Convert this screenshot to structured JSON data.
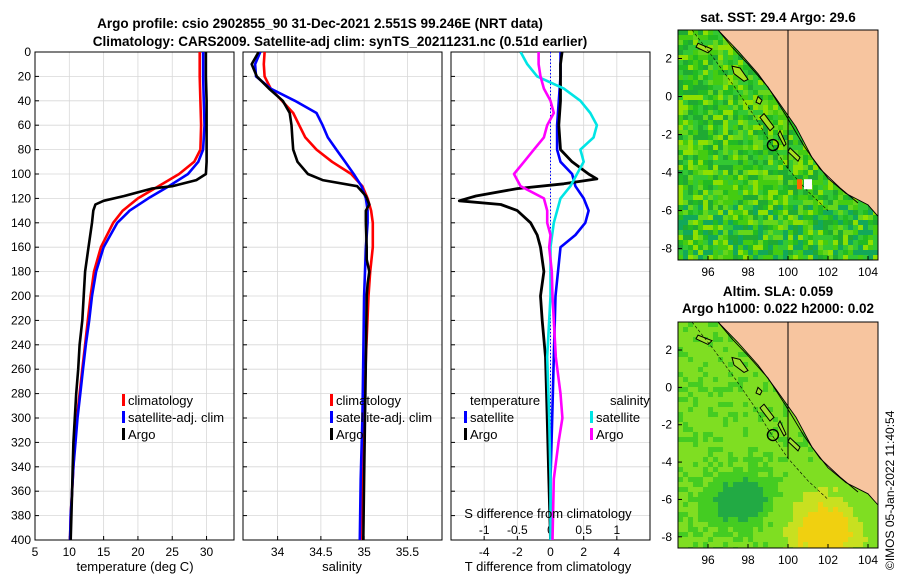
{
  "title": {
    "line1": "Argo profile: csio 2902855_90 31-Dec-2021 2.551S 99.246E (NRT data)",
    "line2": "Climatology: CARS2009. Satellite-adj clim: synTS_20211231.nc (0.51d earlier)"
  },
  "watermark": "©IMOS 05-Jan-2022 11:40:54",
  "colors": {
    "climatology": "#ff0000",
    "satellite": "#0000ff",
    "argo": "#000000",
    "sal_sat": "#00e5e5",
    "sal_argo": "#ff00ff",
    "land": "#f7c59f",
    "ring": "#000000"
  },
  "chart_data": [
    {
      "name": "temperature",
      "type": "line",
      "xlabel": "temperature (deg C)",
      "xlim": [
        5,
        34
      ],
      "xticks": [
        5,
        10,
        15,
        20,
        25,
        30
      ],
      "ylim": [
        0,
        400
      ],
      "yticks": [
        0,
        20,
        40,
        60,
        80,
        100,
        120,
        140,
        160,
        180,
        200,
        220,
        240,
        260,
        280,
        300,
        320,
        340,
        360,
        380,
        400
      ],
      "legend": [
        "climatology",
        "satellite-adj. clim",
        "Argo"
      ],
      "series": [
        {
          "name": "climatology",
          "color": "#ff0000",
          "y": [
            0,
            20,
            40,
            60,
            80,
            90,
            100,
            110,
            120,
            130,
            140,
            160,
            180,
            200,
            220,
            240,
            260,
            280,
            300,
            320,
            340,
            360,
            380,
            400
          ],
          "x": [
            29.0,
            29.0,
            29.1,
            29.2,
            29.1,
            28.2,
            26.0,
            23.0,
            20.0,
            17.8,
            16.4,
            14.6,
            13.6,
            13.1,
            12.7,
            12.3,
            11.9,
            11.5,
            11.1,
            10.8,
            10.6,
            10.4,
            10.2,
            10.1
          ]
        },
        {
          "name": "satellite-adj. clim",
          "color": "#0000ff",
          "y": [
            0,
            20,
            40,
            60,
            80,
            90,
            100,
            110,
            120,
            130,
            140,
            160,
            180,
            200,
            220,
            240,
            260,
            280,
            300,
            320,
            340,
            360,
            380,
            400
          ],
          "x": [
            29.5,
            29.5,
            29.6,
            29.7,
            29.5,
            28.8,
            27.3,
            24.5,
            21.5,
            18.8,
            17.0,
            15.0,
            13.9,
            13.3,
            12.9,
            12.4,
            12.0,
            11.6,
            11.2,
            10.9,
            10.6,
            10.4,
            10.2,
            10.1
          ]
        },
        {
          "name": "Argo",
          "color": "#000000",
          "y": [
            0,
            20,
            40,
            60,
            80,
            90,
            100,
            105,
            110,
            112,
            118,
            122,
            125,
            130,
            140,
            160,
            180,
            200,
            220,
            240,
            260,
            280,
            300,
            320,
            340,
            360,
            380,
            400
          ],
          "x": [
            29.9,
            29.9,
            30.0,
            30.0,
            30.0,
            30.0,
            29.9,
            28.5,
            25.0,
            22.0,
            18.0,
            15.0,
            13.8,
            13.5,
            13.3,
            12.8,
            12.3,
            12.1,
            11.9,
            11.5,
            11.3,
            11.0,
            10.8,
            10.6,
            10.5,
            10.4,
            10.3,
            10.2
          ]
        }
      ]
    },
    {
      "name": "salinity",
      "type": "line",
      "xlabel": "salinity",
      "xlim": [
        33.6,
        35.9
      ],
      "xticks": [
        34,
        34.5,
        35,
        35.5
      ],
      "ylim": [
        0,
        400
      ],
      "legend": [
        "climatology",
        "satellite-adj. clim",
        "Argo"
      ],
      "series": [
        {
          "name": "climatology",
          "color": "#ff0000",
          "y": [
            0,
            10,
            20,
            30,
            40,
            50,
            60,
            70,
            80,
            90,
            100,
            110,
            120,
            130,
            140,
            160,
            180,
            200,
            250,
            300,
            350,
            400
          ],
          "x": [
            33.85,
            33.84,
            33.85,
            33.92,
            34.05,
            34.18,
            34.25,
            34.32,
            34.45,
            34.63,
            34.85,
            34.98,
            35.04,
            35.08,
            35.1,
            35.1,
            35.07,
            35.05,
            35.02,
            35.0,
            34.98,
            34.96
          ]
        },
        {
          "name": "satellite-adj. clim",
          "color": "#0000ff",
          "y": [
            0,
            10,
            20,
            30,
            40,
            50,
            60,
            70,
            80,
            90,
            100,
            110,
            120,
            130,
            140,
            160,
            180,
            200,
            250,
            300,
            350,
            400
          ],
          "x": [
            33.8,
            33.74,
            33.75,
            33.92,
            34.2,
            34.45,
            34.52,
            34.58,
            34.68,
            34.78,
            34.88,
            34.97,
            35.02,
            35.04,
            35.04,
            35.02,
            35.01,
            35.0,
            34.99,
            34.98,
            34.96,
            34.95
          ]
        },
        {
          "name": "Argo",
          "color": "#000000",
          "y": [
            0,
            10,
            20,
            30,
            40,
            50,
            60,
            70,
            80,
            90,
            100,
            105,
            110,
            118,
            125,
            130,
            140,
            160,
            170,
            180,
            190,
            200,
            250,
            300,
            350,
            400
          ],
          "x": [
            33.78,
            33.7,
            33.76,
            33.9,
            34.06,
            34.14,
            34.16,
            34.17,
            34.18,
            34.23,
            34.35,
            34.52,
            34.92,
            35.02,
            35.06,
            35.02,
            35.02,
            35.03,
            35.03,
            35.06,
            35.04,
            35.03,
            35.02,
            35.01,
            35.0,
            34.99
          ]
        }
      ]
    },
    {
      "name": "differences",
      "type": "line",
      "xlabel": "T difference from climatology",
      "xlim": [
        -6,
        6
      ],
      "xticks": [
        -4,
        -2,
        0,
        2,
        4
      ],
      "top_axis_label": "S difference from climatology",
      "top_ticks": [
        -1,
        -0.5,
        0,
        0.5,
        1
      ],
      "ylim": [
        0,
        400
      ],
      "legend_temperature_title": "temperature",
      "legend_salinity_title": "salinity",
      "legend_entries": [
        "satellite",
        "Argo"
      ],
      "series": [
        {
          "name": "T satellite",
          "color": "#0000ff",
          "y": [
            0,
            20,
            40,
            60,
            80,
            90,
            100,
            110,
            120,
            130,
            140,
            150,
            160,
            200,
            250,
            300,
            350,
            400
          ],
          "x": [
            0.6,
            0.6,
            0.5,
            0.4,
            0.4,
            0.6,
            1.3,
            1.5,
            2.0,
            2.3,
            2.1,
            1.5,
            0.6,
            0.3,
            0.2,
            0.1,
            0.0,
            0.0
          ]
        },
        {
          "name": "T Argo",
          "color": "#000000",
          "y": [
            0,
            10,
            20,
            40,
            60,
            80,
            90,
            100,
            104,
            108,
            112,
            118,
            122,
            125,
            130,
            140,
            150,
            160,
            170,
            180,
            200,
            220,
            250,
            300,
            350,
            400
          ],
          "x": [
            0.7,
            0.6,
            0.6,
            0.6,
            0.5,
            0.6,
            1.3,
            2.3,
            2.8,
            0.8,
            -2.0,
            -4.5,
            -5.5,
            -3.0,
            -2.0,
            -1.2,
            -0.8,
            -0.6,
            -0.5,
            -0.4,
            -0.6,
            -0.5,
            -0.3,
            -0.2,
            -0.1,
            0.0
          ]
        },
        {
          "name": "S satellite",
          "color": "#00e5e5",
          "y": [
            0,
            10,
            20,
            30,
            40,
            50,
            60,
            70,
            80,
            90,
            100,
            110,
            120,
            140,
            160,
            200,
            250,
            300,
            350,
            400
          ],
          "x": [
            -0.45,
            -0.35,
            -0.2,
            0.2,
            0.45,
            0.6,
            0.7,
            0.65,
            0.45,
            0.5,
            0.4,
            0.3,
            0.15,
            0.05,
            0.0,
            0.0,
            -0.05,
            -0.02,
            0.0,
            0.0
          ]
        },
        {
          "name": "S Argo",
          "color": "#ff00ff",
          "y": [
            0,
            10,
            20,
            30,
            40,
            50,
            60,
            70,
            80,
            90,
            100,
            110,
            120,
            130,
            140,
            150,
            160,
            180,
            200,
            220,
            250,
            280,
            300,
            320,
            350,
            400
          ],
          "x": [
            -0.18,
            -0.18,
            -0.15,
            -0.1,
            0.0,
            0.05,
            -0.05,
            -0.1,
            -0.25,
            -0.4,
            -0.55,
            -0.45,
            -0.1,
            -0.05,
            -0.05,
            0.0,
            -0.02,
            0.02,
            0.03,
            0.05,
            0.08,
            0.15,
            0.18,
            0.12,
            0.05,
            0.03
          ]
        }
      ]
    },
    {
      "name": "sst_map",
      "type": "heatmap",
      "title": "sat. SST: 29.4 Argo: 29.6",
      "xticks": [
        96,
        98,
        100,
        102,
        104
      ],
      "yticks": [
        2,
        0,
        -2,
        -4,
        -6,
        -8
      ],
      "xlim": [
        94.5,
        104.5
      ],
      "ylim": [
        -8.6,
        3.5
      ],
      "argo_position": {
        "lon": 99.246,
        "lat": -2.551
      }
    },
    {
      "name": "sla_map",
      "type": "heatmap",
      "title_line1": "Altim. SLA: 0.059",
      "title_line2": "Argo h1000: 0.022 h2000: 0.02",
      "xticks": [
        96,
        98,
        100,
        102,
        104
      ],
      "yticks": [
        2,
        0,
        -2,
        -4,
        -6,
        -8
      ],
      "xlim": [
        94.5,
        104.5
      ],
      "ylim": [
        -8.6,
        3.5
      ],
      "argo_position": {
        "lon": 99.246,
        "lat": -2.551
      }
    }
  ]
}
